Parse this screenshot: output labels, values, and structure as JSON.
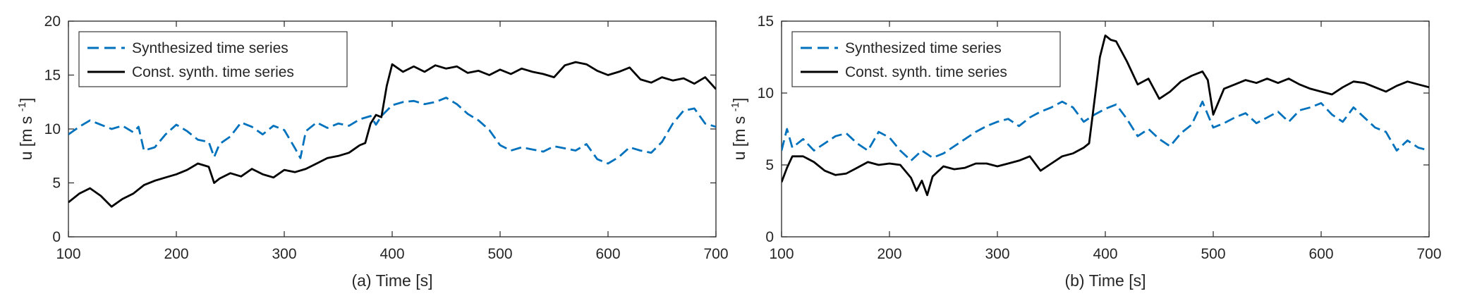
{
  "colors": {
    "synth": "#0072BD",
    "const": "#000000",
    "axis": "#262626"
  },
  "chart_data": [
    {
      "type": "line",
      "xlabel": "(a) Time [s]",
      "ylabel_main": "u [m s",
      "ylabel_sup": "-1",
      "ylabel_end": "]",
      "xlim": [
        100,
        700
      ],
      "ylim": [
        0,
        20
      ],
      "xticks": [
        100,
        200,
        300,
        400,
        500,
        600,
        700
      ],
      "yticks": [
        0,
        5,
        10,
        15,
        20
      ],
      "grid": false,
      "legend": "top-left",
      "series": [
        {
          "name": "Synthesized time series",
          "style": "dashed",
          "x": [
            100,
            110,
            120,
            130,
            140,
            150,
            160,
            165,
            170,
            180,
            190,
            200,
            210,
            220,
            230,
            235,
            240,
            250,
            260,
            270,
            280,
            290,
            300,
            310,
            315,
            320,
            330,
            340,
            350,
            360,
            370,
            380,
            385,
            390,
            400,
            410,
            420,
            430,
            440,
            450,
            460,
            470,
            480,
            490,
            500,
            510,
            520,
            530,
            540,
            550,
            560,
            570,
            580,
            590,
            600,
            610,
            620,
            630,
            640,
            650,
            660,
            670,
            680,
            690,
            700
          ],
          "y": [
            9.5,
            10.2,
            10.8,
            10.4,
            10.0,
            10.3,
            9.7,
            10.2,
            8.0,
            8.3,
            9.5,
            10.4,
            9.8,
            9.0,
            8.8,
            7.4,
            8.6,
            9.3,
            10.6,
            10.2,
            9.5,
            10.3,
            9.9,
            8.2,
            7.3,
            9.8,
            10.6,
            10.1,
            10.5,
            10.3,
            10.9,
            11.2,
            10.4,
            11.2,
            12.2,
            12.5,
            12.6,
            12.3,
            12.5,
            12.9,
            12.3,
            11.4,
            10.8,
            9.9,
            8.5,
            8.0,
            8.3,
            8.1,
            7.9,
            8.4,
            8.2,
            8.0,
            8.6,
            7.2,
            6.8,
            7.4,
            8.3,
            8.0,
            7.8,
            8.8,
            10.5,
            11.7,
            11.9,
            10.5,
            10.2
          ]
        },
        {
          "name": "Const. synth. time series",
          "style": "solid",
          "x": [
            100,
            110,
            120,
            130,
            140,
            150,
            160,
            170,
            180,
            190,
            200,
            210,
            220,
            230,
            235,
            240,
            250,
            260,
            270,
            280,
            290,
            300,
            310,
            320,
            330,
            340,
            350,
            360,
            370,
            375,
            380,
            385,
            390,
            395,
            400,
            410,
            420,
            430,
            440,
            450,
            460,
            470,
            480,
            490,
            500,
            510,
            520,
            530,
            540,
            550,
            560,
            570,
            580,
            590,
            600,
            610,
            620,
            630,
            640,
            650,
            660,
            670,
            680,
            690,
            700
          ],
          "y": [
            3.2,
            4.0,
            4.5,
            3.8,
            2.8,
            3.5,
            4.0,
            4.8,
            5.2,
            5.5,
            5.8,
            6.2,
            6.8,
            6.5,
            5.0,
            5.4,
            5.9,
            5.6,
            6.3,
            5.8,
            5.5,
            6.2,
            6.0,
            6.3,
            6.8,
            7.3,
            7.5,
            7.8,
            8.5,
            8.7,
            10.5,
            11.3,
            11.1,
            14.0,
            16.0,
            15.3,
            15.8,
            15.3,
            15.9,
            15.6,
            15.8,
            15.2,
            15.4,
            15.0,
            15.5,
            15.1,
            15.6,
            15.3,
            15.1,
            14.8,
            15.9,
            16.2,
            16.0,
            15.4,
            15.0,
            15.3,
            15.7,
            14.6,
            14.3,
            14.8,
            14.5,
            14.7,
            14.2,
            14.8,
            13.7
          ]
        }
      ]
    },
    {
      "type": "line",
      "xlabel": "(b) Time [s]",
      "ylabel_main": "u [m s",
      "ylabel_sup": "-1",
      "ylabel_end": "]",
      "xlim": [
        100,
        700
      ],
      "ylim": [
        0,
        15
      ],
      "xticks": [
        100,
        200,
        300,
        400,
        500,
        600,
        700
      ],
      "yticks": [
        0,
        5,
        10,
        15
      ],
      "grid": false,
      "legend": "top-left",
      "series": [
        {
          "name": "Synthesized time series",
          "style": "dashed",
          "x": [
            100,
            105,
            110,
            120,
            130,
            140,
            150,
            160,
            170,
            180,
            190,
            200,
            210,
            220,
            230,
            240,
            250,
            260,
            270,
            280,
            290,
            300,
            310,
            320,
            330,
            340,
            350,
            360,
            370,
            380,
            390,
            400,
            410,
            420,
            430,
            440,
            450,
            460,
            470,
            480,
            490,
            495,
            500,
            510,
            520,
            530,
            540,
            550,
            560,
            570,
            580,
            590,
            600,
            610,
            620,
            630,
            640,
            650,
            660,
            670,
            680,
            690,
            700
          ],
          "y": [
            6.0,
            7.5,
            6.2,
            6.8,
            6.0,
            6.5,
            7.0,
            7.2,
            6.5,
            6.0,
            7.3,
            6.9,
            6.0,
            5.3,
            6.0,
            5.5,
            5.8,
            6.3,
            6.8,
            7.3,
            7.7,
            8.0,
            8.2,
            7.7,
            8.3,
            8.7,
            9.0,
            9.4,
            9.0,
            8.0,
            8.5,
            8.9,
            9.2,
            8.2,
            7.0,
            7.5,
            6.8,
            6.3,
            7.2,
            7.8,
            9.4,
            8.5,
            7.6,
            7.9,
            8.3,
            8.6,
            7.9,
            8.3,
            8.7,
            8.0,
            8.8,
            9.0,
            9.3,
            8.5,
            8.0,
            9.0,
            8.3,
            7.6,
            7.3,
            6.0,
            6.7,
            6.2,
            6.0
          ]
        },
        {
          "name": "Const. synth. time series",
          "style": "solid",
          "x": [
            100,
            105,
            110,
            120,
            130,
            140,
            150,
            160,
            170,
            180,
            190,
            200,
            210,
            220,
            225,
            230,
            235,
            240,
            250,
            260,
            270,
            280,
            290,
            300,
            310,
            320,
            330,
            340,
            350,
            360,
            370,
            380,
            385,
            390,
            395,
            400,
            405,
            410,
            420,
            430,
            440,
            450,
            460,
            470,
            480,
            490,
            495,
            500,
            510,
            520,
            530,
            540,
            550,
            560,
            570,
            580,
            590,
            600,
            610,
            620,
            630,
            640,
            650,
            660,
            670,
            680,
            690,
            700
          ],
          "y": [
            3.8,
            4.8,
            5.6,
            5.6,
            5.2,
            4.6,
            4.3,
            4.4,
            4.8,
            5.2,
            5.0,
            5.1,
            5.0,
            4.1,
            3.2,
            3.9,
            2.9,
            4.2,
            4.9,
            4.7,
            4.8,
            5.1,
            5.1,
            4.9,
            5.1,
            5.3,
            5.6,
            4.6,
            5.1,
            5.6,
            5.8,
            6.2,
            6.5,
            9.5,
            12.5,
            14.0,
            13.7,
            13.6,
            12.2,
            10.6,
            11.0,
            9.6,
            10.1,
            10.8,
            11.2,
            11.5,
            10.9,
            8.5,
            10.3,
            10.6,
            10.9,
            10.7,
            11.0,
            10.7,
            11.0,
            10.6,
            10.3,
            10.1,
            9.9,
            10.4,
            10.8,
            10.7,
            10.4,
            10.1,
            10.5,
            10.8,
            10.6,
            10.4
          ]
        }
      ]
    }
  ]
}
